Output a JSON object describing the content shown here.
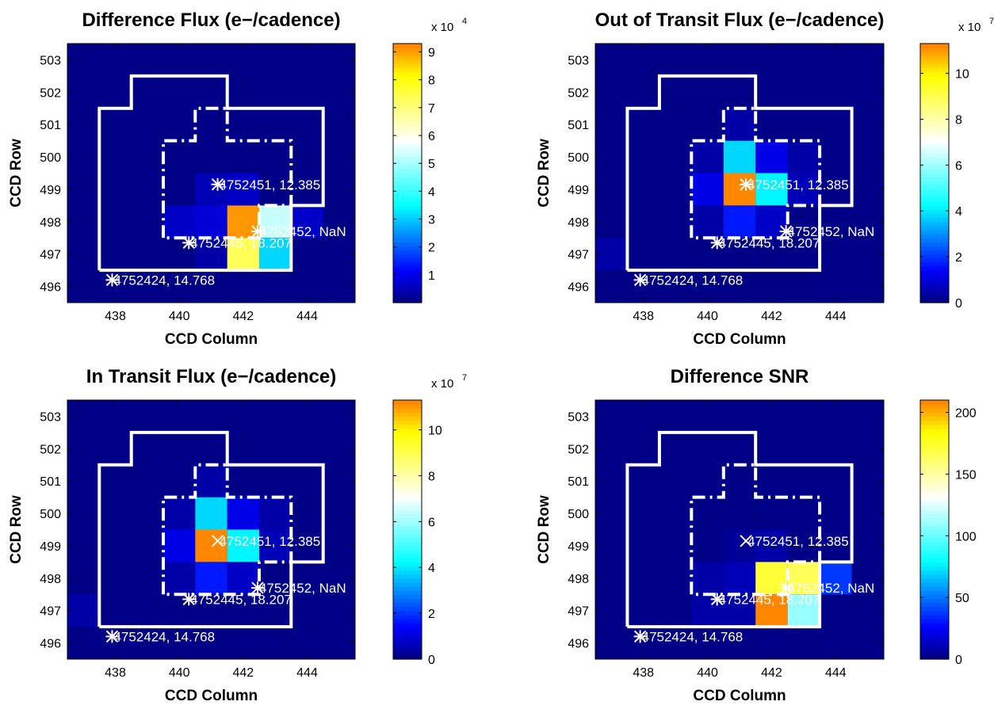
{
  "chart_data": [
    {
      "type": "heatmap",
      "title": "Difference Flux (e−/cadence)",
      "xlabel": "CCD Column",
      "ylabel": "CCD Row",
      "xlim": [
        436.5,
        445.5
      ],
      "ylim": [
        495.5,
        503.5
      ],
      "xticks": [
        438,
        440,
        442,
        444
      ],
      "yticks": [
        496,
        497,
        498,
        499,
        500,
        501,
        502,
        503
      ],
      "colorbar": {
        "min": 0,
        "max": 9.3,
        "ticks": [
          1,
          2,
          3,
          4,
          5,
          6,
          7,
          8,
          9
        ],
        "multiplier": "x 10",
        "exponent": "4"
      },
      "background_value": 0.05,
      "cells": [
        {
          "col": 441,
          "row": 499,
          "value": 0.4
        },
        {
          "col": 442,
          "row": 499,
          "value": 0.6
        },
        {
          "col": 440,
          "row": 498,
          "value": 0.6
        },
        {
          "col": 441,
          "row": 498,
          "value": 0.8
        },
        {
          "col": 442,
          "row": 498,
          "value": 9.1
        },
        {
          "col": 443,
          "row": 498,
          "value": 5.3
        },
        {
          "col": 444,
          "row": 498,
          "value": 0.6
        },
        {
          "col": 441,
          "row": 497,
          "value": 0.3
        },
        {
          "col": 442,
          "row": 497,
          "value": 7.4
        },
        {
          "col": 443,
          "row": 497,
          "value": 3.1
        }
      ],
      "stars": [
        {
          "x": 441.2,
          "y": 499.15,
          "marker": "asterisk",
          "label": "4752451, 12.385"
        },
        {
          "x": 440.3,
          "y": 497.35,
          "marker": "asterisk",
          "label": "4752445, 18.207"
        },
        {
          "x": 442.45,
          "y": 497.7,
          "marker": "asterisk",
          "label": "4752452, NaN"
        },
        {
          "x": 437.9,
          "y": 496.2,
          "marker": "asterisk",
          "label": "4752424, 14.768"
        }
      ]
    },
    {
      "type": "heatmap",
      "title": "Out of Transit Flux (e−/cadence)",
      "xlabel": "CCD Column",
      "ylabel": "CCD Row",
      "xlim": [
        436.5,
        445.5
      ],
      "ylim": [
        495.5,
        503.5
      ],
      "xticks": [
        438,
        440,
        442,
        444
      ],
      "yticks": [
        496,
        497,
        498,
        499,
        500,
        501,
        502,
        503
      ],
      "colorbar": {
        "min": 0,
        "max": 11.3,
        "ticks": [
          0,
          2,
          4,
          6,
          8,
          10
        ],
        "multiplier": "x 10",
        "exponent": "7"
      },
      "background_value": 0.05,
      "cells": [
        {
          "col": 441,
          "row": 501,
          "value": 0.3
        },
        {
          "col": 440,
          "row": 500,
          "value": 0.3
        },
        {
          "col": 441,
          "row": 500,
          "value": 3.7
        },
        {
          "col": 442,
          "row": 500,
          "value": 1.1
        },
        {
          "col": 443,
          "row": 500,
          "value": 0.4
        },
        {
          "col": 440,
          "row": 499,
          "value": 1.0
        },
        {
          "col": 441,
          "row": 499,
          "value": 11.3
        },
        {
          "col": 442,
          "row": 499,
          "value": 4.1
        },
        {
          "col": 443,
          "row": 499,
          "value": 0.6
        },
        {
          "col": 440,
          "row": 498,
          "value": 0.4
        },
        {
          "col": 441,
          "row": 498,
          "value": 1.7
        },
        {
          "col": 442,
          "row": 498,
          "value": 0.8
        },
        {
          "col": 437,
          "row": 497,
          "value": 0.35
        }
      ],
      "stars": [
        {
          "x": 441.2,
          "y": 499.15,
          "marker": "asterisk",
          "label": "4752451, 12.385"
        },
        {
          "x": 440.3,
          "y": 497.35,
          "marker": "asterisk",
          "label": "4752445, 18.207"
        },
        {
          "x": 442.45,
          "y": 497.7,
          "marker": "asterisk",
          "label": "4752452, NaN"
        },
        {
          "x": 437.9,
          "y": 496.2,
          "marker": "asterisk",
          "label": "4752424, 14.768"
        }
      ]
    },
    {
      "type": "heatmap",
      "title": "In Transit Flux (e−/cadence)",
      "xlabel": "CCD Column",
      "ylabel": "CCD Row",
      "xlim": [
        436.5,
        445.5
      ],
      "ylim": [
        495.5,
        503.5
      ],
      "xticks": [
        438,
        440,
        442,
        444
      ],
      "yticks": [
        496,
        497,
        498,
        499,
        500,
        501,
        502,
        503
      ],
      "colorbar": {
        "min": 0,
        "max": 11.3,
        "ticks": [
          0,
          2,
          4,
          6,
          8,
          10
        ],
        "multiplier": "x 10",
        "exponent": "7"
      },
      "background_value": 0.05,
      "cells": [
        {
          "col": 441,
          "row": 501,
          "value": 0.3
        },
        {
          "col": 440,
          "row": 500,
          "value": 0.3
        },
        {
          "col": 441,
          "row": 500,
          "value": 3.7
        },
        {
          "col": 442,
          "row": 500,
          "value": 1.1
        },
        {
          "col": 443,
          "row": 500,
          "value": 0.4
        },
        {
          "col": 440,
          "row": 499,
          "value": 1.0
        },
        {
          "col": 441,
          "row": 499,
          "value": 11.3
        },
        {
          "col": 442,
          "row": 499,
          "value": 4.1
        },
        {
          "col": 443,
          "row": 499,
          "value": 0.6
        },
        {
          "col": 440,
          "row": 498,
          "value": 0.4
        },
        {
          "col": 441,
          "row": 498,
          "value": 1.7
        },
        {
          "col": 442,
          "row": 498,
          "value": 0.8
        },
        {
          "col": 437,
          "row": 497,
          "value": 0.35
        }
      ],
      "stars": [
        {
          "x": 441.2,
          "y": 499.15,
          "marker": "cross",
          "label": "4752451, 12.385"
        },
        {
          "x": 440.3,
          "y": 497.35,
          "marker": "asterisk",
          "label": "4752445, 18.207"
        },
        {
          "x": 442.45,
          "y": 497.7,
          "marker": "asterisk",
          "label": "4752452, NaN"
        },
        {
          "x": 437.9,
          "y": 496.2,
          "marker": "asterisk",
          "label": "4752424, 14.768"
        }
      ]
    },
    {
      "type": "heatmap",
      "title": "Difference SNR",
      "xlabel": "CCD Column",
      "ylabel": "CCD Row",
      "xlim": [
        436.5,
        445.5
      ],
      "ylim": [
        495.5,
        503.5
      ],
      "xticks": [
        438,
        440,
        442,
        444
      ],
      "yticks": [
        496,
        497,
        498,
        499,
        500,
        501,
        502,
        503
      ],
      "colorbar": {
        "min": 0,
        "max": 210,
        "ticks": [
          0,
          50,
          100,
          150,
          200
        ],
        "multiplier": "",
        "exponent": ""
      },
      "background_value": 0,
      "cells": [
        {
          "col": 441,
          "row": 499,
          "value": 4
        },
        {
          "col": 442,
          "row": 499,
          "value": 6
        },
        {
          "col": 440,
          "row": 498,
          "value": 8
        },
        {
          "col": 441,
          "row": 498,
          "value": 10
        },
        {
          "col": 442,
          "row": 498,
          "value": 172
        },
        {
          "col": 443,
          "row": 498,
          "value": 168
        },
        {
          "col": 444,
          "row": 498,
          "value": 35
        },
        {
          "col": 440,
          "row": 497,
          "value": 5
        },
        {
          "col": 441,
          "row": 497,
          "value": 8
        },
        {
          "col": 442,
          "row": 497,
          "value": 210
        },
        {
          "col": 443,
          "row": 497,
          "value": 110
        }
      ],
      "stars": [
        {
          "x": 441.2,
          "y": 499.15,
          "marker": "cross",
          "label": "4752451, 12.385"
        },
        {
          "x": 440.3,
          "y": 497.35,
          "marker": "asterisk",
          "label": "4752445, 18.207"
        },
        {
          "x": 442.45,
          "y": 497.7,
          "marker": "asterisk",
          "label": "4752452, NaN"
        },
        {
          "x": 437.9,
          "y": 496.2,
          "marker": "asterisk",
          "label": "4752424, 14.768"
        }
      ]
    }
  ]
}
